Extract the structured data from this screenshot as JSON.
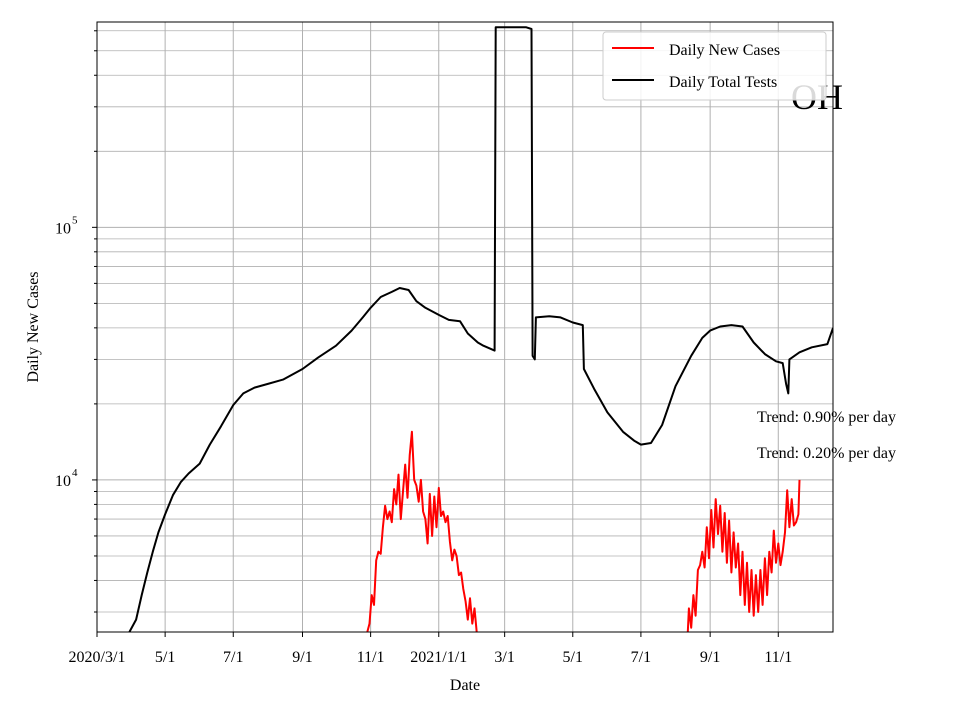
{
  "chart_data": {
    "type": "line",
    "title": "",
    "overlay_label": "OH",
    "xlabel": "Date",
    "ylabel": "Daily New Cases",
    "y_scale": "log",
    "ylim": [
      2500,
      650000
    ],
    "xlim": [
      "2020-03-01",
      "2021-12-20"
    ],
    "grid": true,
    "legend_position": "top-right",
    "x_tick_labels": [
      {
        "date": "2020-03-01",
        "label": "2020/3/1"
      },
      {
        "date": "2020-05-01",
        "label": "5/1"
      },
      {
        "date": "2020-07-01",
        "label": "7/1"
      },
      {
        "date": "2020-09-01",
        "label": "9/1"
      },
      {
        "date": "2020-11-01",
        "label": "11/1"
      },
      {
        "date": "2021-01-01",
        "label": "2021/1/1"
      },
      {
        "date": "2021-03-01",
        "label": "3/1"
      },
      {
        "date": "2021-05-01",
        "label": "5/1"
      },
      {
        "date": "2021-07-01",
        "label": "7/1"
      },
      {
        "date": "2021-09-01",
        "label": "9/1"
      },
      {
        "date": "2021-11-01",
        "label": "11/1"
      }
    ],
    "y_tick_labels": [
      {
        "value": 10000,
        "base": "10",
        "exp": "4"
      },
      {
        "value": 100000,
        "base": "10",
        "exp": "5"
      }
    ],
    "annotations": [
      "Trend: 0.90% per day",
      "Trend: 0.20% per day"
    ],
    "series": [
      {
        "name": "Daily New Cases",
        "color": "#ff0000",
        "points": [
          [
            "2020-10-29",
            2500
          ],
          [
            "2020-10-31",
            2700
          ],
          [
            "2020-11-02",
            3500
          ],
          [
            "2020-11-04",
            3200
          ],
          [
            "2020-11-06",
            4800
          ],
          [
            "2020-11-08",
            5200
          ],
          [
            "2020-11-10",
            5100
          ],
          [
            "2020-11-12",
            6500
          ],
          [
            "2020-11-14",
            7900
          ],
          [
            "2020-11-16",
            7000
          ],
          [
            "2020-11-18",
            7500
          ],
          [
            "2020-11-20",
            6800
          ],
          [
            "2020-11-22",
            9200
          ],
          [
            "2020-11-24",
            8000
          ],
          [
            "2020-11-26",
            10500
          ],
          [
            "2020-11-28",
            7000
          ],
          [
            "2020-11-30",
            9000
          ],
          [
            "2020-12-02",
            11500
          ],
          [
            "2020-12-04",
            8500
          ],
          [
            "2020-12-06",
            12500
          ],
          [
            "2020-12-08",
            15500
          ],
          [
            "2020-12-10",
            10000
          ],
          [
            "2020-12-12",
            9500
          ],
          [
            "2020-12-14",
            8200
          ],
          [
            "2020-12-16",
            10000
          ],
          [
            "2020-12-18",
            7500
          ],
          [
            "2020-12-20",
            7000
          ],
          [
            "2020-12-22",
            5600
          ],
          [
            "2020-12-24",
            8800
          ],
          [
            "2020-12-26",
            6000
          ],
          [
            "2020-12-28",
            8600
          ],
          [
            "2020-12-30",
            6500
          ],
          [
            "2021-01-01",
            9300
          ],
          [
            "2021-01-03",
            7200
          ],
          [
            "2021-01-05",
            7500
          ],
          [
            "2021-01-07",
            6800
          ],
          [
            "2021-01-09",
            7200
          ],
          [
            "2021-01-11",
            5700
          ],
          [
            "2021-01-13",
            4800
          ],
          [
            "2021-01-15",
            5300
          ],
          [
            "2021-01-17",
            5000
          ],
          [
            "2021-01-19",
            4200
          ],
          [
            "2021-01-21",
            4300
          ],
          [
            "2021-01-23",
            3700
          ],
          [
            "2021-01-25",
            3300
          ],
          [
            "2021-01-27",
            2800
          ],
          [
            "2021-01-29",
            3400
          ],
          [
            "2021-01-31",
            2700
          ],
          [
            "2021-02-02",
            3100
          ],
          [
            "2021-02-04",
            2500
          ],
          null,
          [
            "2021-08-12",
            2500
          ],
          [
            "2021-08-13",
            3100
          ],
          [
            "2021-08-15",
            2600
          ],
          [
            "2021-08-17",
            3500
          ],
          [
            "2021-08-19",
            2900
          ],
          [
            "2021-08-21",
            4400
          ],
          [
            "2021-08-23",
            4600
          ],
          [
            "2021-08-25",
            5200
          ],
          [
            "2021-08-27",
            4500
          ],
          [
            "2021-08-29",
            6500
          ],
          [
            "2021-08-31",
            4900
          ],
          [
            "2021-09-02",
            7600
          ],
          [
            "2021-09-04",
            5400
          ],
          [
            "2021-09-06",
            8400
          ],
          [
            "2021-09-08",
            6100
          ],
          [
            "2021-09-10",
            7900
          ],
          [
            "2021-09-12",
            5200
          ],
          [
            "2021-09-14",
            7400
          ],
          [
            "2021-09-16",
            4700
          ],
          [
            "2021-09-18",
            6900
          ],
          [
            "2021-09-20",
            4300
          ],
          [
            "2021-09-22",
            6200
          ],
          [
            "2021-09-24",
            4500
          ],
          [
            "2021-09-26",
            5600
          ],
          [
            "2021-09-28",
            3500
          ],
          [
            "2021-09-30",
            5200
          ],
          [
            "2021-10-02",
            3200
          ],
          [
            "2021-10-04",
            4700
          ],
          [
            "2021-10-06",
            3000
          ],
          [
            "2021-10-08",
            4400
          ],
          [
            "2021-10-10",
            2900
          ],
          [
            "2021-10-12",
            4200
          ],
          [
            "2021-10-14",
            3000
          ],
          [
            "2021-10-16",
            4400
          ],
          [
            "2021-10-18",
            3200
          ],
          [
            "2021-10-20",
            4900
          ],
          [
            "2021-10-22",
            3500
          ],
          [
            "2021-10-24",
            5200
          ],
          [
            "2021-10-26",
            4300
          ],
          [
            "2021-10-28",
            6300
          ],
          [
            "2021-10-30",
            4700
          ],
          [
            "2021-11-01",
            5600
          ],
          [
            "2021-11-03",
            4600
          ],
          [
            "2021-11-05",
            5200
          ],
          [
            "2021-11-07",
            6200
          ],
          [
            "2021-11-09",
            9100
          ],
          [
            "2021-11-11",
            6500
          ],
          [
            "2021-11-13",
            8400
          ],
          [
            "2021-11-15",
            6600
          ],
          [
            "2021-11-17",
            6800
          ],
          [
            "2021-11-19",
            7300
          ],
          [
            "2021-11-20",
            10000
          ]
        ]
      },
      {
        "name": "Daily Total Tests",
        "color": "#000000",
        "points": [
          [
            "2020-03-30",
            2500
          ],
          [
            "2020-04-05",
            2800
          ],
          [
            "2020-04-10",
            3500
          ],
          [
            "2020-04-15",
            4300
          ],
          [
            "2020-04-20",
            5200
          ],
          [
            "2020-04-25",
            6200
          ],
          [
            "2020-05-01",
            7300
          ],
          [
            "2020-05-08",
            8700
          ],
          [
            "2020-05-15",
            9800
          ],
          [
            "2020-05-22",
            10600
          ],
          [
            "2020-06-01",
            11600
          ],
          [
            "2020-06-10",
            13800
          ],
          [
            "2020-06-20",
            16300
          ],
          [
            "2020-07-01",
            19800
          ],
          [
            "2020-07-10",
            22000
          ],
          [
            "2020-07-20",
            23200
          ],
          [
            "2020-08-01",
            24000
          ],
          [
            "2020-08-15",
            25000
          ],
          [
            "2020-09-01",
            27500
          ],
          [
            "2020-09-15",
            30500
          ],
          [
            "2020-10-01",
            34000
          ],
          [
            "2020-10-15",
            39000
          ],
          [
            "2020-10-25",
            44000
          ],
          [
            "2020-11-01",
            48000
          ],
          [
            "2020-11-10",
            53000
          ],
          [
            "2020-11-20",
            55500
          ],
          [
            "2020-11-27",
            57500
          ],
          [
            "2020-12-05",
            56500
          ],
          [
            "2020-12-12",
            51000
          ],
          [
            "2020-12-20",
            48000
          ],
          [
            "2021-01-01",
            45000
          ],
          [
            "2021-01-10",
            43000
          ],
          [
            "2021-01-20",
            42500
          ],
          [
            "2021-01-27",
            38000
          ],
          [
            "2021-02-05",
            35000
          ],
          [
            "2021-02-10",
            34000
          ],
          [
            "2021-02-20",
            32500
          ],
          [
            "2021-02-21",
            620000
          ],
          [
            "2021-03-20",
            620000
          ],
          [
            "2021-03-25",
            610000
          ],
          [
            "2021-03-26",
            31000
          ],
          [
            "2021-03-28",
            30000
          ],
          [
            "2021-03-29",
            44000
          ],
          [
            "2021-04-10",
            44500
          ],
          [
            "2021-04-20",
            44000
          ],
          [
            "2021-05-01",
            42000
          ],
          [
            "2021-05-10",
            41000
          ],
          [
            "2021-05-11",
            27500
          ],
          [
            "2021-05-20",
            23000
          ],
          [
            "2021-06-01",
            18500
          ],
          [
            "2021-06-15",
            15500
          ],
          [
            "2021-06-25",
            14300
          ],
          [
            "2021-07-01",
            13800
          ],
          [
            "2021-07-10",
            14000
          ],
          [
            "2021-07-20",
            16500
          ],
          [
            "2021-08-01",
            23500
          ],
          [
            "2021-08-15",
            31000
          ],
          [
            "2021-08-25",
            36500
          ],
          [
            "2021-09-01",
            39000
          ],
          [
            "2021-09-10",
            40500
          ],
          [
            "2021-09-20",
            41000
          ],
          [
            "2021-09-30",
            40500
          ],
          [
            "2021-10-10",
            35000
          ],
          [
            "2021-10-20",
            31500
          ],
          [
            "2021-10-30",
            29500
          ],
          [
            "2021-11-05",
            29000
          ],
          [
            "2021-11-08",
            24000
          ],
          [
            "2021-11-10",
            22000
          ],
          [
            "2021-11-11",
            30000
          ],
          [
            "2021-11-20",
            32000
          ],
          [
            "2021-12-01",
            33500
          ],
          [
            "2021-12-15",
            34500
          ],
          [
            "2021-12-20",
            40000
          ]
        ]
      }
    ]
  }
}
